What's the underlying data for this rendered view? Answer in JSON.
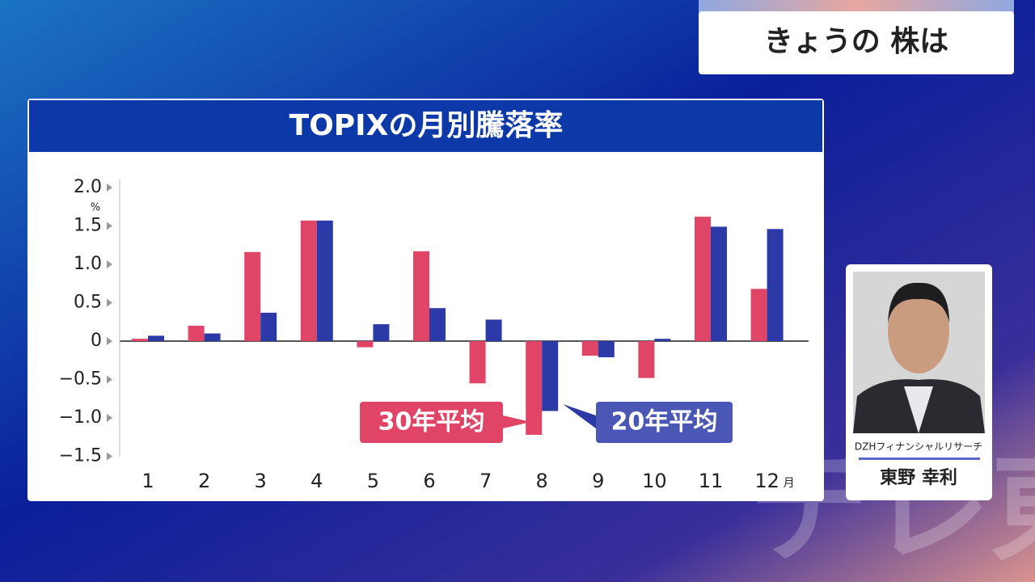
{
  "corner_title": "きょうの 株は",
  "chart_data": {
    "type": "bar",
    "title": "TOPIXの月別騰落率",
    "categories": [
      "1",
      "2",
      "3",
      "4",
      "5",
      "6",
      "7",
      "8",
      "9",
      "10",
      "11",
      "12"
    ],
    "x_unit": "月",
    "y_unit": "%",
    "series": [
      {
        "name": "30年平均",
        "color": "#e04466",
        "values": [
          0.03,
          0.2,
          1.16,
          1.57,
          -0.08,
          1.17,
          -0.55,
          -1.22,
          -0.19,
          -0.48,
          1.62,
          0.68
        ]
      },
      {
        "name": "20年平均",
        "color": "#2c3aa8",
        "values": [
          0.07,
          0.1,
          0.37,
          1.57,
          0.22,
          0.43,
          0.28,
          -0.91,
          -0.21,
          0.03,
          1.49,
          1.46
        ]
      }
    ],
    "ylim": [
      -1.5,
      2.0
    ],
    "yticks": [
      {
        "value": 2.0,
        "label": "2.0"
      },
      {
        "value": 1.5,
        "label": "1.5"
      },
      {
        "value": 1.0,
        "label": "1.0"
      },
      {
        "value": 0.5,
        "label": "0.5"
      },
      0,
      {
        "value": -0.5,
        "label": "−0.5"
      },
      {
        "value": -1.0,
        "label": "−1.0"
      },
      {
        "value": -1.5,
        "label": "−1.5"
      }
    ]
  },
  "guest": {
    "company": "DZHフィナンシャルリサーチ",
    "name": "東野 幸利"
  },
  "watermark": "テレ東"
}
